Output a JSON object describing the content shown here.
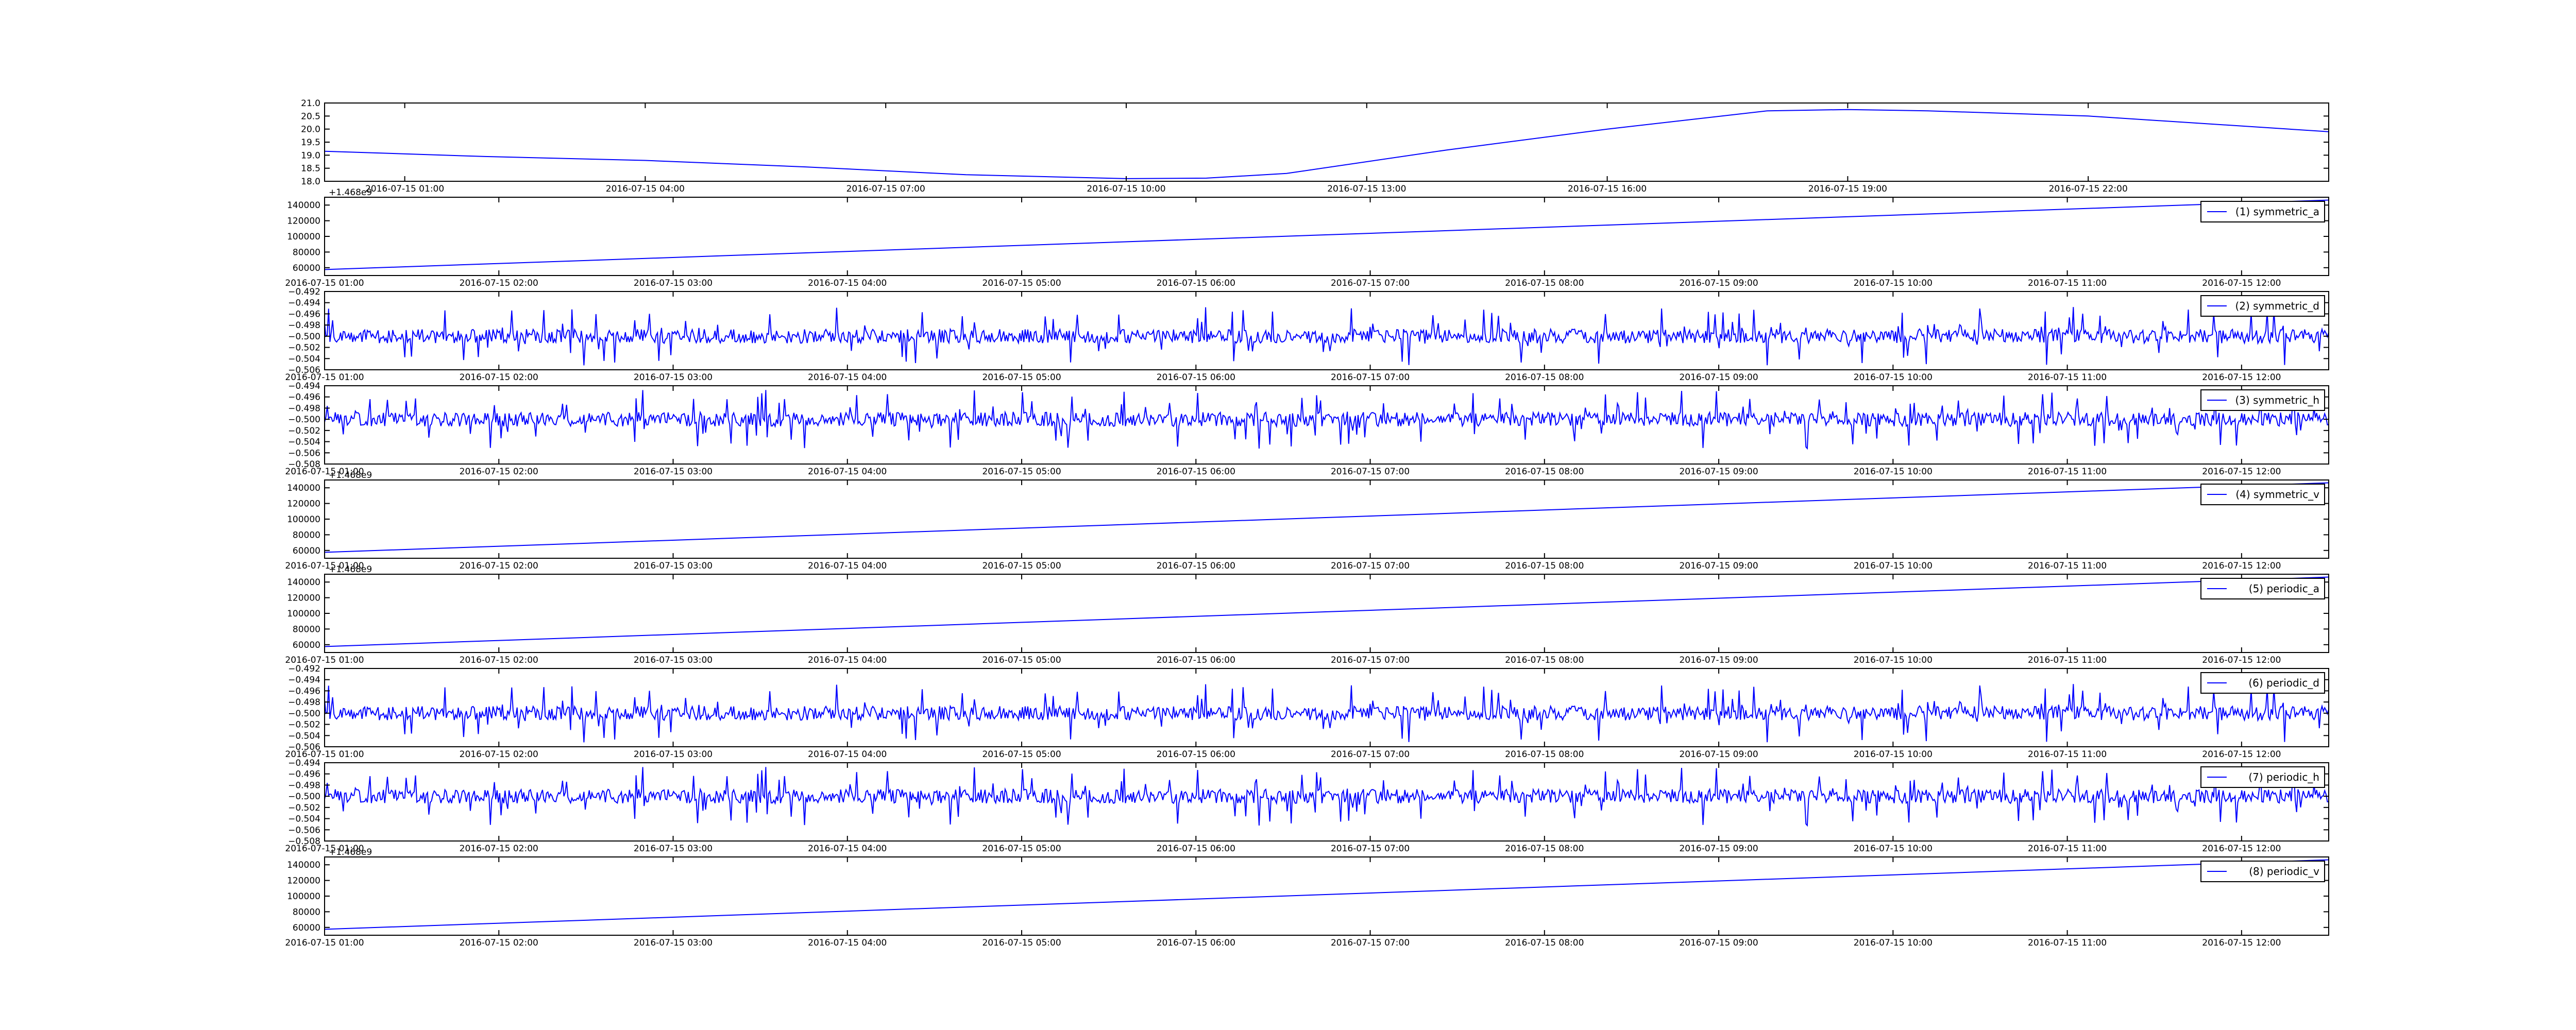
{
  "colors": {
    "line": "#0000ff",
    "frame": "#000000",
    "background": "#ffffff"
  },
  "chart_data": [
    {
      "type": "line",
      "title": "",
      "xlabel": "",
      "ylabel": "",
      "legend": null,
      "grid": false,
      "x_tick_labels": [
        "2016-07-15 01:00",
        "2016-07-15 04:00",
        "2016-07-15 07:00",
        "2016-07-15 10:00",
        "2016-07-15 13:00",
        "2016-07-15 16:00",
        "2016-07-15 19:00",
        "2016-07-15 22:00"
      ],
      "y_tick_labels": [
        "18.0",
        "18.5",
        "19.0",
        "19.5",
        "20.0",
        "20.5",
        "21.0"
      ],
      "ylim": [
        18.0,
        21.0
      ],
      "xlim": [
        "2016-07-15 00:00",
        "2016-07-16 01:00"
      ],
      "x": [
        "2016-07-15 00:00",
        "2016-07-15 02:00",
        "2016-07-15 04:00",
        "2016-07-15 06:00",
        "2016-07-15 08:00",
        "2016-07-15 10:00",
        "2016-07-15 11:00",
        "2016-07-15 12:00",
        "2016-07-15 14:00",
        "2016-07-15 16:00",
        "2016-07-15 18:00",
        "2016-07-15 19:00",
        "2016-07-15 20:00",
        "2016-07-15 22:00",
        "2016-07-16 01:00"
      ],
      "series": [
        {
          "values": [
            19.15,
            18.95,
            18.8,
            18.55,
            18.25,
            18.1,
            18.12,
            18.3,
            19.2,
            20.0,
            20.7,
            20.75,
            20.7,
            20.5,
            19.9
          ]
        }
      ]
    },
    {
      "type": "line",
      "title": "",
      "xlabel": "",
      "ylabel": "",
      "y_offset_label": "+1.468e9",
      "legend": {
        "label": "(1) symmetric_a",
        "position": "upper right"
      },
      "x_tick_labels": [
        "2016-07-15 01:00",
        "2016-07-15 02:00",
        "2016-07-15 03:00",
        "2016-07-15 04:00",
        "2016-07-15 05:00",
        "2016-07-15 06:00",
        "2016-07-15 07:00",
        "2016-07-15 08:00",
        "2016-07-15 09:00",
        "2016-07-15 10:00",
        "2016-07-15 11:00",
        "2016-07-15 12:00"
      ],
      "y_tick_labels": [
        "60000",
        "80000",
        "100000",
        "120000",
        "140000"
      ],
      "ylim": [
        50000,
        150000
      ],
      "xlim": [
        "2016-07-15 01:00",
        "2016-07-15 12:30"
      ],
      "x": [
        "2016-07-15 01:00",
        "2016-07-15 12:30"
      ],
      "series": [
        {
          "name": "(1) symmetric_a",
          "values": [
            57600,
            146400
          ]
        }
      ]
    },
    {
      "type": "line",
      "title": "",
      "xlabel": "",
      "ylabel": "",
      "legend": {
        "label": "(2) symmetric_d",
        "position": "upper right"
      },
      "noise": {
        "seed": 2,
        "baseline": -0.5
      },
      "x_tick_labels": [
        "2016-07-15 01:00",
        "2016-07-15 02:00",
        "2016-07-15 03:00",
        "2016-07-15 04:00",
        "2016-07-15 05:00",
        "2016-07-15 06:00",
        "2016-07-15 07:00",
        "2016-07-15 08:00",
        "2016-07-15 09:00",
        "2016-07-15 10:00",
        "2016-07-15 11:00",
        "2016-07-15 12:00"
      ],
      "y_tick_labels": [
        "−0.506",
        "−0.504",
        "−0.502",
        "−0.500",
        "−0.498",
        "−0.496",
        "−0.494",
        "−0.492"
      ],
      "ylim": [
        -0.506,
        -0.492
      ],
      "xlim": [
        "2016-07-15 01:00",
        "2016-07-15 12:30"
      ],
      "series": [
        {
          "name": "(2) symmetric_d"
        }
      ]
    },
    {
      "type": "line",
      "title": "",
      "xlabel": "",
      "ylabel": "",
      "legend": {
        "label": "(3) symmetric_h",
        "position": "upper right"
      },
      "noise": {
        "seed": 3,
        "baseline": -0.5
      },
      "x_tick_labels": [
        "2016-07-15 01:00",
        "2016-07-15 02:00",
        "2016-07-15 03:00",
        "2016-07-15 04:00",
        "2016-07-15 05:00",
        "2016-07-15 06:00",
        "2016-07-15 07:00",
        "2016-07-15 08:00",
        "2016-07-15 09:00",
        "2016-07-15 10:00",
        "2016-07-15 11:00",
        "2016-07-15 12:00"
      ],
      "y_tick_labels": [
        "−0.508",
        "−0.506",
        "−0.504",
        "−0.502",
        "−0.500",
        "−0.498",
        "−0.496",
        "−0.494"
      ],
      "ylim": [
        -0.508,
        -0.494
      ],
      "xlim": [
        "2016-07-15 01:00",
        "2016-07-15 12:30"
      ],
      "series": [
        {
          "name": "(3) symmetric_h"
        }
      ]
    },
    {
      "type": "line",
      "title": "",
      "xlabel": "",
      "ylabel": "",
      "y_offset_label": "+1.468e9",
      "legend": {
        "label": "(4) symmetric_v",
        "position": "upper right"
      },
      "x_tick_labels": [
        "2016-07-15 01:00",
        "2016-07-15 02:00",
        "2016-07-15 03:00",
        "2016-07-15 04:00",
        "2016-07-15 05:00",
        "2016-07-15 06:00",
        "2016-07-15 07:00",
        "2016-07-15 08:00",
        "2016-07-15 09:00",
        "2016-07-15 10:00",
        "2016-07-15 11:00",
        "2016-07-15 12:00"
      ],
      "y_tick_labels": [
        "60000",
        "80000",
        "100000",
        "120000",
        "140000"
      ],
      "ylim": [
        50000,
        150000
      ],
      "xlim": [
        "2016-07-15 01:00",
        "2016-07-15 12:30"
      ],
      "x": [
        "2016-07-15 01:00",
        "2016-07-15 12:30"
      ],
      "series": [
        {
          "name": "(4) symmetric_v",
          "values": [
            57600,
            146400
          ]
        }
      ]
    },
    {
      "type": "line",
      "title": "",
      "xlabel": "",
      "ylabel": "",
      "y_offset_label": "+1.468e9",
      "legend": {
        "label": "(5) periodic_a",
        "position": "upper right"
      },
      "x_tick_labels": [
        "2016-07-15 01:00",
        "2016-07-15 02:00",
        "2016-07-15 03:00",
        "2016-07-15 04:00",
        "2016-07-15 05:00",
        "2016-07-15 06:00",
        "2016-07-15 07:00",
        "2016-07-15 08:00",
        "2016-07-15 09:00",
        "2016-07-15 10:00",
        "2016-07-15 11:00",
        "2016-07-15 12:00"
      ],
      "y_tick_labels": [
        "60000",
        "80000",
        "100000",
        "120000",
        "140000"
      ],
      "ylim": [
        50000,
        150000
      ],
      "xlim": [
        "2016-07-15 01:00",
        "2016-07-15 12:30"
      ],
      "x": [
        "2016-07-15 01:00",
        "2016-07-15 12:30"
      ],
      "series": [
        {
          "name": "(5) periodic_a",
          "values": [
            57600,
            146400
          ]
        }
      ]
    },
    {
      "type": "line",
      "title": "",
      "xlabel": "",
      "ylabel": "",
      "legend": {
        "label": "(6) periodic_d",
        "position": "upper right"
      },
      "noise": {
        "seed": 2,
        "baseline": -0.5
      },
      "x_tick_labels": [
        "2016-07-15 01:00",
        "2016-07-15 02:00",
        "2016-07-15 03:00",
        "2016-07-15 04:00",
        "2016-07-15 05:00",
        "2016-07-15 06:00",
        "2016-07-15 07:00",
        "2016-07-15 08:00",
        "2016-07-15 09:00",
        "2016-07-15 10:00",
        "2016-07-15 11:00",
        "2016-07-15 12:00"
      ],
      "y_tick_labels": [
        "−0.506",
        "−0.504",
        "−0.502",
        "−0.500",
        "−0.498",
        "−0.496",
        "−0.494",
        "−0.492"
      ],
      "ylim": [
        -0.506,
        -0.492
      ],
      "xlim": [
        "2016-07-15 01:00",
        "2016-07-15 12:30"
      ],
      "series": [
        {
          "name": "(6) periodic_d"
        }
      ]
    },
    {
      "type": "line",
      "title": "",
      "xlabel": "",
      "ylabel": "",
      "legend": {
        "label": "(7) periodic_h",
        "position": "upper right"
      },
      "noise": {
        "seed": 3,
        "baseline": -0.5
      },
      "x_tick_labels": [
        "2016-07-15 01:00",
        "2016-07-15 02:00",
        "2016-07-15 03:00",
        "2016-07-15 04:00",
        "2016-07-15 05:00",
        "2016-07-15 06:00",
        "2016-07-15 07:00",
        "2016-07-15 08:00",
        "2016-07-15 09:00",
        "2016-07-15 10:00",
        "2016-07-15 11:00",
        "2016-07-15 12:00"
      ],
      "y_tick_labels": [
        "−0.508",
        "−0.506",
        "−0.504",
        "−0.502",
        "−0.500",
        "−0.498",
        "−0.496",
        "−0.494"
      ],
      "ylim": [
        -0.508,
        -0.494
      ],
      "xlim": [
        "2016-07-15 01:00",
        "2016-07-15 12:30"
      ],
      "series": [
        {
          "name": "(7) periodic_h"
        }
      ]
    },
    {
      "type": "line",
      "title": "",
      "xlabel": "",
      "ylabel": "",
      "y_offset_label": "+1.468e9",
      "legend": {
        "label": "(8) periodic_v",
        "position": "upper right"
      },
      "x_tick_labels": [
        "2016-07-15 01:00",
        "2016-07-15 02:00",
        "2016-07-15 03:00",
        "2016-07-15 04:00",
        "2016-07-15 05:00",
        "2016-07-15 06:00",
        "2016-07-15 07:00",
        "2016-07-15 08:00",
        "2016-07-15 09:00",
        "2016-07-15 10:00",
        "2016-07-15 11:00",
        "2016-07-15 12:00"
      ],
      "y_tick_labels": [
        "60000",
        "80000",
        "100000",
        "120000",
        "140000"
      ],
      "ylim": [
        50000,
        150000
      ],
      "xlim": [
        "2016-07-15 01:00",
        "2016-07-15 12:30"
      ],
      "x": [
        "2016-07-15 01:00",
        "2016-07-15 12:30"
      ],
      "series": [
        {
          "name": "(8) periodic_v",
          "values": [
            57600,
            146400
          ]
        }
      ]
    }
  ]
}
